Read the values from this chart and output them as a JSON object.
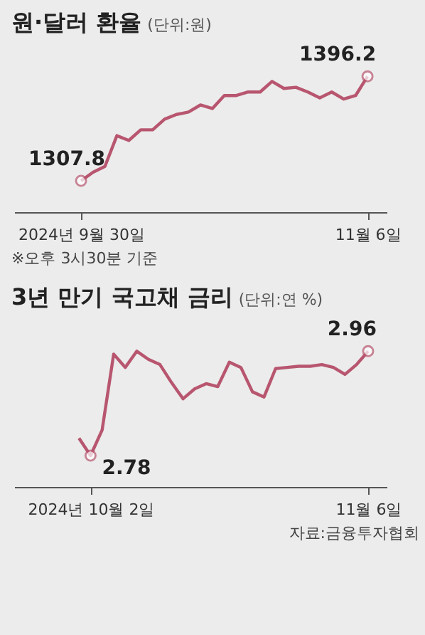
{
  "chart_data": [
    {
      "type": "line",
      "title": "원·달러 환율",
      "subtitle": "(단위:원)",
      "marker": "none",
      "tick_labels": "x",
      "grid": false,
      "categories": [
        "2024년 9월 30일",
        null,
        null,
        null,
        null,
        null,
        null,
        null,
        null,
        null,
        null,
        null,
        null,
        null,
        null,
        null,
        null,
        null,
        null,
        null,
        null,
        null,
        null,
        null,
        "11월 6일"
      ],
      "series": [
        {
          "color": "#b8566f",
          "values": [
            1307.8,
            1315,
            1320,
            1346,
            1342,
            1351,
            1351,
            1360,
            1364,
            1366,
            1372,
            1369,
            1380,
            1380,
            1383,
            1383,
            1392,
            1386,
            1387,
            1383,
            1378,
            1383,
            1377,
            1380,
            1396.2
          ],
          "value_labels": [
            "1307.8",
            null,
            null,
            null,
            null,
            null,
            null,
            null,
            null,
            null,
            null,
            null,
            null,
            null,
            null,
            null,
            null,
            null,
            null,
            null,
            null,
            null,
            null,
            null,
            "1396.2"
          ]
        }
      ],
      "annotations": [
        "※오후 3시30분 기준"
      ]
    },
    {
      "type": "line",
      "title": "3년 만기 국고채 금리",
      "subtitle": "(단위:연 %)",
      "marker": "none",
      "tick_labels": "x",
      "grid": false,
      "categories": [
        null,
        "2024년 10월 2일",
        null,
        null,
        null,
        null,
        null,
        null,
        null,
        null,
        null,
        null,
        null,
        null,
        null,
        null,
        null,
        null,
        null,
        null,
        null,
        null,
        null,
        null,
        null,
        "11월 6일"
      ],
      "series": [
        {
          "color": "#b8566f",
          "values": [
            2.81,
            2.78,
            2.824,
            2.955,
            2.932,
            2.96,
            2.946,
            2.937,
            2.906,
            2.878,
            2.895,
            2.904,
            2.899,
            2.941,
            2.932,
            2.89,
            2.881,
            2.93,
            2.932,
            2.934,
            2.934,
            2.937,
            2.932,
            2.92,
            2.937,
            2.96
          ],
          "value_labels": [
            null,
            "2.78",
            null,
            null,
            null,
            null,
            null,
            null,
            null,
            null,
            null,
            null,
            null,
            null,
            null,
            null,
            null,
            null,
            null,
            null,
            null,
            null,
            null,
            null,
            null,
            "2.96"
          ]
        }
      ],
      "annotations": [
        "자료:금융투자협회"
      ]
    }
  ]
}
